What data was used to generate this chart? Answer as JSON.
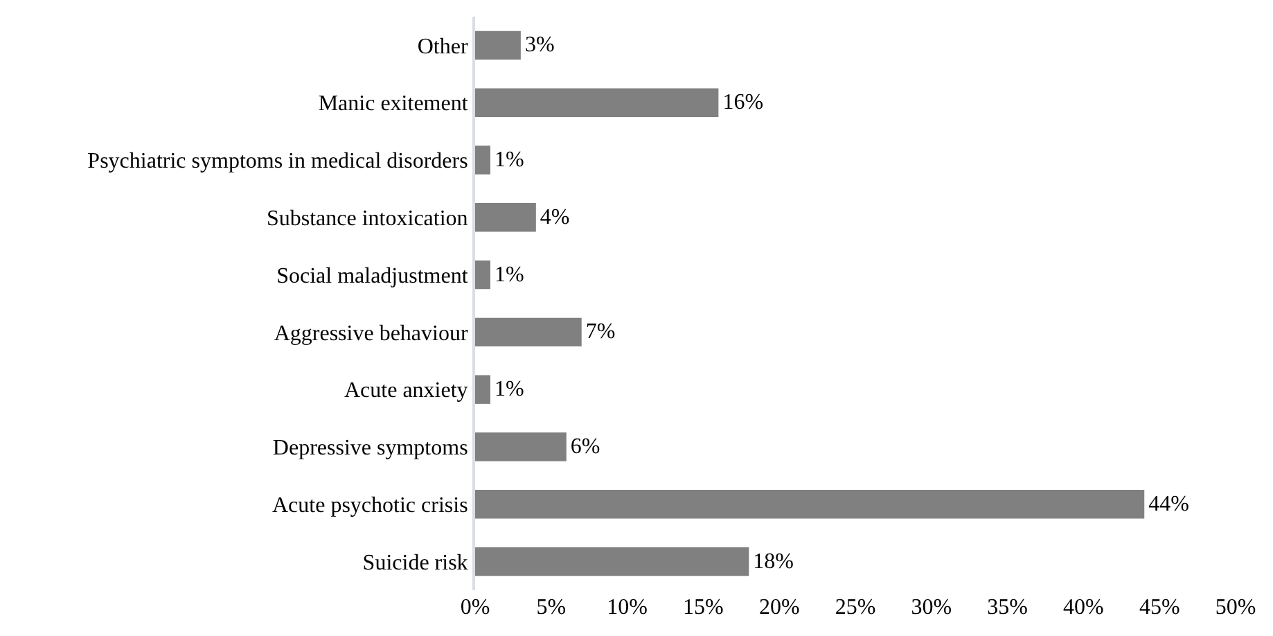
{
  "chart_data": {
    "type": "bar",
    "orientation": "horizontal",
    "categories": [
      "Other",
      "Manic exitement",
      "Psychiatric symptoms in medical disorders",
      "Substance intoxication",
      "Social maladjustment",
      "Aggressive behaviour",
      "Acute anxiety",
      "Depressive symptoms",
      "Acute psychotic crisis",
      "Suicide risk"
    ],
    "values": [
      3,
      16,
      1,
      4,
      1,
      7,
      1,
      6,
      44,
      18
    ],
    "value_labels": [
      "3%",
      "16%",
      "1%",
      "4%",
      "1%",
      "7%",
      "1%",
      "6%",
      "44%",
      "18%"
    ],
    "color": "#808080",
    "xlim": [
      0,
      50
    ],
    "xticks": [
      {
        "value": 0,
        "label": "0%"
      },
      {
        "value": 5,
        "label": "5%"
      },
      {
        "value": 10,
        "label": "10%"
      },
      {
        "value": 15,
        "label": "15%"
      },
      {
        "value": 20,
        "label": "20%"
      },
      {
        "value": 25,
        "label": "25%"
      },
      {
        "value": 30,
        "label": "30%"
      },
      {
        "value": 35,
        "label": "35%"
      },
      {
        "value": 40,
        "label": "40%"
      },
      {
        "value": 45,
        "label": "45%"
      },
      {
        "value": 50,
        "label": "50%"
      }
    ],
    "grid": false
  }
}
